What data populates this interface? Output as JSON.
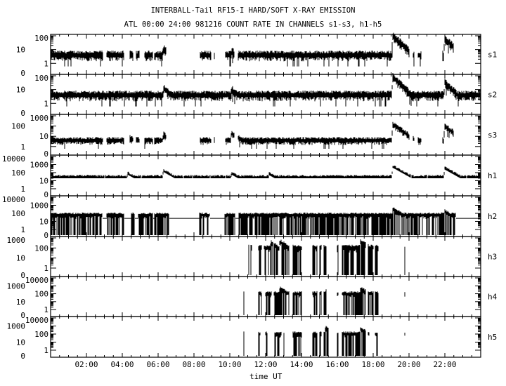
{
  "chart_data": {
    "type": "line",
    "title": "INTERBALL-Tail RF15-I HARD/SOFT X-RAY EMISSION",
    "subtitle": "ATL 00:00 24:00 981216  COUNT RATE IN CHANNELS s1-s3, h1-h5",
    "xlabel": "time UT",
    "xlim_hours": [
      0,
      24
    ],
    "x_tick_labels": [
      "02:00",
      "04:00",
      "06:00",
      "08:00",
      "10:00",
      "12:00",
      "14:00",
      "16:00",
      "18:00",
      "20:00",
      "22:00"
    ],
    "y_scale": "log",
    "grid": false,
    "panels": [
      {
        "name": "s1",
        "y_tick_labels": [
          "0",
          "1",
          "10",
          "100"
        ],
        "base": 4,
        "active": [
          [
            0,
            2.94
          ],
          [
            3.13,
            4.1
          ],
          [
            4.4,
            4.6
          ],
          [
            4.75,
            4.95
          ],
          [
            5.25,
            5.7
          ],
          [
            5.8,
            6.45
          ],
          [
            8.35,
            8.98
          ],
          [
            9.1,
            9.15
          ],
          [
            9.73,
            10.27
          ],
          [
            10.47,
            20.0
          ],
          [
            20.2,
            20.3
          ],
          [
            20.5,
            20.7
          ],
          [
            21.85,
            22.5
          ]
        ],
        "peaks": [
          [
            10.1,
            8
          ],
          [
            6.3,
            12
          ],
          [
            19.1,
            100
          ],
          [
            22.0,
            60
          ]
        ]
      },
      {
        "name": "s2",
        "y_tick_labels": [
          "0",
          "1",
          "10",
          "100"
        ],
        "base": 4,
        "active": [
          [
            0,
            24
          ]
        ],
        "peaks": [
          [
            6.3,
            12
          ],
          [
            10.1,
            10
          ],
          [
            19.1,
            80
          ],
          [
            22.0,
            30
          ]
        ]
      },
      {
        "name": "s3",
        "y_tick_labels": [
          "0",
          "1",
          "10",
          "100",
          "1000"
        ],
        "base": 4,
        "active": [
          [
            0,
            2.94
          ],
          [
            3.13,
            4.1
          ],
          [
            4.4,
            4.6
          ],
          [
            4.75,
            4.95
          ],
          [
            5.25,
            5.7
          ],
          [
            5.8,
            6.45
          ],
          [
            8.35,
            8.98
          ],
          [
            9.1,
            9.15
          ],
          [
            9.73,
            10.27
          ],
          [
            10.47,
            20.0
          ],
          [
            20.2,
            20.3
          ],
          [
            20.5,
            20.7
          ],
          [
            21.85,
            22.5
          ]
        ],
        "peaks": [
          [
            4.3,
            10
          ],
          [
            6.3,
            15
          ],
          [
            10.1,
            20
          ],
          [
            19.1,
            150
          ],
          [
            22.0,
            90
          ]
        ]
      },
      {
        "name": "h1",
        "y_tick_labels": [
          "0",
          "1",
          "10",
          "100",
          "1000",
          "10000"
        ],
        "base": 25,
        "active": [
          [
            0,
            3.0
          ],
          [
            3.02,
            5.05
          ],
          [
            5.07,
            7.4
          ],
          [
            7.42,
            7.9
          ],
          [
            7.95,
            8.9
          ],
          [
            8.92,
            9.75
          ],
          [
            9.77,
            20.1
          ],
          [
            20.12,
            20.6
          ],
          [
            20.62,
            21.0
          ],
          [
            21.02,
            22.6
          ],
          [
            22.62,
            23.2
          ],
          [
            23.22,
            24
          ]
        ],
        "peaks": [
          [
            4.3,
            70
          ],
          [
            6.3,
            150
          ],
          [
            10.1,
            70
          ],
          [
            12.2,
            60
          ],
          [
            19.1,
            500
          ],
          [
            22.0,
            300
          ]
        ]
      },
      {
        "name": "h2",
        "y_tick_labels": [
          "0",
          "1",
          "10",
          "100",
          "1000",
          "10000"
        ],
        "base": 60,
        "active": [
          [
            0,
            2.9
          ],
          [
            3.1,
            4.1
          ],
          [
            4.5,
            4.7
          ],
          [
            4.9,
            5.7
          ],
          [
            5.8,
            6.6
          ],
          [
            8.3,
            8.9
          ],
          [
            9.7,
            10.3
          ],
          [
            10.5,
            22.6
          ]
        ],
        "peaks": [
          [
            19.1,
            300
          ],
          [
            22.0,
            150
          ]
        ]
      },
      {
        "name": "h3",
        "y_tick_labels": [
          "0",
          "1",
          "10",
          "100",
          "1000"
        ],
        "base": 100,
        "active": [
          [
            11.05,
            11.08
          ],
          [
            11.15,
            11.25
          ],
          [
            11.6,
            11.8
          ],
          [
            11.9,
            12.4
          ],
          [
            12.45,
            13.3
          ],
          [
            13.5,
            14.0
          ],
          [
            14.6,
            14.9
          ],
          [
            15.0,
            15.1
          ],
          [
            15.25,
            15.4
          ],
          [
            16.0,
            16.05
          ],
          [
            16.25,
            17.6
          ],
          [
            17.7,
            18.0
          ],
          [
            18.1,
            18.3
          ],
          [
            19.75,
            19.8
          ]
        ],
        "peaks": [
          [
            12.3,
            300
          ],
          [
            12.8,
            400
          ],
          [
            17.3,
            400
          ]
        ]
      },
      {
        "name": "h4",
        "y_tick_labels": [
          "0",
          "1",
          "10",
          "100",
          "1000",
          "10000"
        ],
        "base": 100,
        "active": [
          [
            10.75,
            10.8
          ],
          [
            11.15,
            11.17
          ],
          [
            11.6,
            11.8
          ],
          [
            12.0,
            12.35
          ],
          [
            12.45,
            13.3
          ],
          [
            13.5,
            14.0
          ],
          [
            14.6,
            14.9
          ],
          [
            15.0,
            15.1
          ],
          [
            15.25,
            15.4
          ],
          [
            16.0,
            16.05
          ],
          [
            16.25,
            17.6
          ],
          [
            17.7,
            18.0
          ],
          [
            18.1,
            18.3
          ],
          [
            19.75,
            19.8
          ]
        ],
        "peaks": [
          [
            12.8,
            400
          ],
          [
            15.4,
            500
          ],
          [
            17.3,
            400
          ]
        ]
      },
      {
        "name": "h5",
        "y_tick_labels": [
          "0",
          "1",
          "10",
          "100",
          "1000",
          "10000"
        ],
        "base": 100,
        "active": [
          [
            10.75,
            10.8
          ],
          [
            11.6,
            11.7
          ],
          [
            12.0,
            12.1
          ],
          [
            12.5,
            12.9
          ],
          [
            13.0,
            13.05
          ],
          [
            13.5,
            14.0
          ],
          [
            14.6,
            14.9
          ],
          [
            15.0,
            15.1
          ],
          [
            15.25,
            15.5
          ],
          [
            16.0,
            16.05
          ],
          [
            16.25,
            17.6
          ],
          [
            17.7,
            17.8
          ],
          [
            18.1,
            18.25
          ],
          [
            19.75,
            19.8
          ]
        ],
        "peaks": [
          [
            15.35,
            600
          ],
          [
            17.3,
            400
          ]
        ]
      }
    ]
  }
}
